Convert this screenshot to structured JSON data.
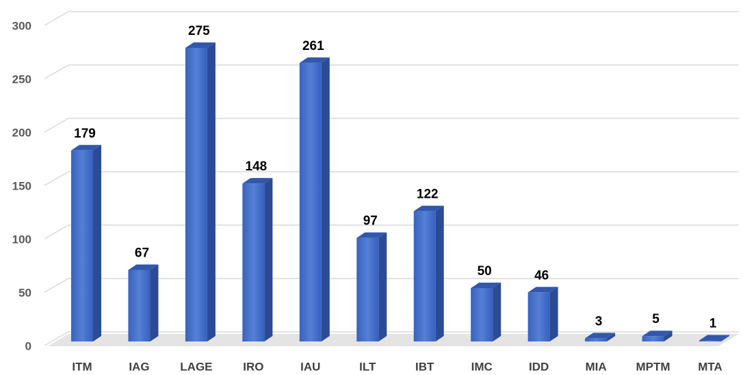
{
  "chart_data": {
    "type": "bar",
    "categories": [
      "ITM",
      "IAG",
      "LAGE",
      "IRO",
      "IAU",
      "ILT",
      "IBT",
      "IMC",
      "IDD",
      "MIA",
      "MPTM",
      "MTA"
    ],
    "values": [
      179,
      67,
      275,
      148,
      261,
      97,
      122,
      50,
      46,
      3,
      5,
      1
    ],
    "color": "#3f68c4",
    "ylim": [
      0,
      300
    ],
    "yticks": [
      0,
      50,
      100,
      150,
      200,
      250,
      300
    ],
    "grid": true
  }
}
